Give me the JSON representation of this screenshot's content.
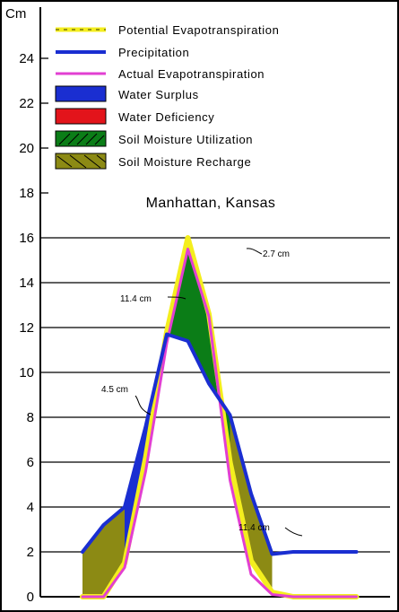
{
  "chart_data": {
    "type": "line",
    "title": "Manhattan, Kansas",
    "ylabel": "Cm",
    "ylim": [
      0,
      26
    ],
    "yticks": [
      0,
      2,
      4,
      6,
      8,
      10,
      12,
      14,
      16,
      18,
      20,
      22,
      24
    ],
    "grid": true,
    "legend_position": "top-left",
    "x": [
      0,
      1,
      2,
      3,
      4,
      5,
      6,
      7,
      8,
      9,
      10,
      11,
      12,
      13
    ],
    "series": [
      {
        "name": "Potential Evapotranspiration",
        "color": "#f4ee1e",
        "values": [
          0,
          0,
          1.5,
          6.2,
          11.8,
          16.0,
          12.6,
          6.0,
          1.6,
          0.2,
          0,
          0,
          0,
          0
        ]
      },
      {
        "name": "Precipitation",
        "color": "#1a2ed1",
        "values": [
          2.0,
          3.2,
          4.0,
          7.6,
          11.7,
          11.4,
          9.5,
          8.1,
          4.6,
          1.9,
          2.0,
          2.0,
          2.0,
          2.0
        ]
      },
      {
        "name": "Actual Evapotranspiration",
        "color": "#e23fd2",
        "values": [
          0,
          0,
          1.3,
          5.6,
          11.3,
          15.5,
          12.5,
          5.2,
          1.0,
          0.1,
          0,
          0,
          0,
          0
        ]
      }
    ],
    "areas": [
      {
        "name": "Water Surplus",
        "color": "#1a2ed1"
      },
      {
        "name": "Water Deficiency",
        "color": "#e3141b"
      },
      {
        "name": "Soil Moisture Utilization",
        "color": "#0b7d17"
      },
      {
        "name": "Soil Moisture Recharge",
        "color": "#8c8a14"
      }
    ],
    "annotations": [
      "2.7 cm",
      "11.4 cm",
      "4.5 cm",
      "11.4 cm"
    ]
  }
}
